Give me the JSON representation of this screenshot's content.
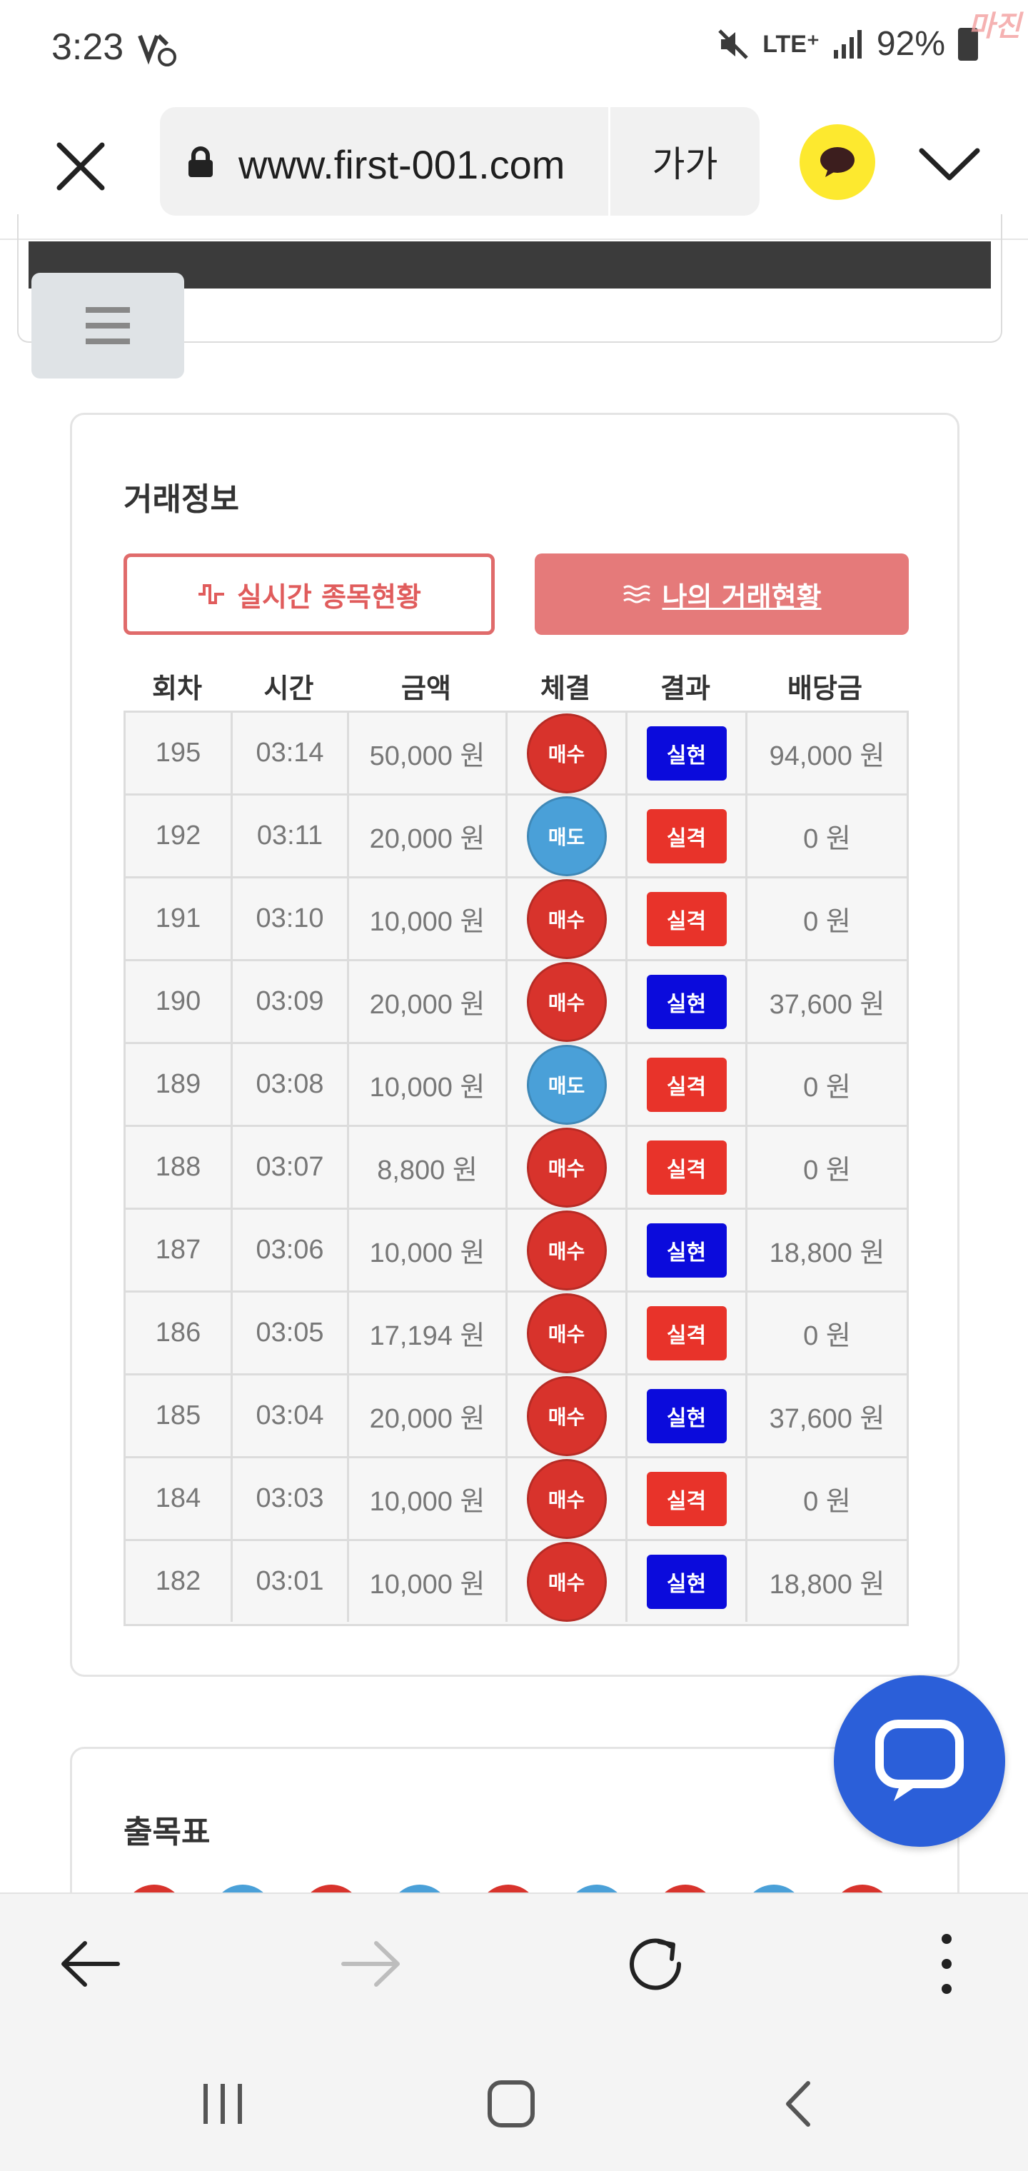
{
  "status": {
    "time": "3:23",
    "network": "LTE⁺",
    "battery": "92%",
    "watermark": "마진"
  },
  "browser": {
    "url": "www.first-001.com",
    "text_size_label": "가가"
  },
  "trade_card": {
    "title": "거래정보",
    "realtime_button": "실시간 종목현황",
    "my_trade_button": "나의 거래현황",
    "headers": [
      "회차",
      "시간",
      "금액",
      "체결",
      "결과",
      "배당금"
    ],
    "rows": [
      {
        "round": "195",
        "time": "03:14",
        "amount": "50,000 원",
        "trade": "매수",
        "result": "실현",
        "payout": "94,000 원"
      },
      {
        "round": "192",
        "time": "03:11",
        "amount": "20,000 원",
        "trade": "매도",
        "result": "실격",
        "payout": "0 원"
      },
      {
        "round": "191",
        "time": "03:10",
        "amount": "10,000 원",
        "trade": "매수",
        "result": "실격",
        "payout": "0 원"
      },
      {
        "round": "190",
        "time": "03:09",
        "amount": "20,000 원",
        "trade": "매수",
        "result": "실현",
        "payout": "37,600 원"
      },
      {
        "round": "189",
        "time": "03:08",
        "amount": "10,000 원",
        "trade": "매도",
        "result": "실격",
        "payout": "0 원"
      },
      {
        "round": "188",
        "time": "03:07",
        "amount": "8,800 원",
        "trade": "매수",
        "result": "실격",
        "payout": "0 원"
      },
      {
        "round": "187",
        "time": "03:06",
        "amount": "10,000 원",
        "trade": "매수",
        "result": "실현",
        "payout": "18,800 원"
      },
      {
        "round": "186",
        "time": "03:05",
        "amount": "17,194 원",
        "trade": "매수",
        "result": "실격",
        "payout": "0 원"
      },
      {
        "round": "185",
        "time": "03:04",
        "amount": "20,000 원",
        "trade": "매수",
        "result": "실현",
        "payout": "37,600 원"
      },
      {
        "round": "184",
        "time": "03:03",
        "amount": "10,000 원",
        "trade": "매수",
        "result": "실격",
        "payout": "0 원"
      },
      {
        "round": "182",
        "time": "03:01",
        "amount": "10,000 원",
        "trade": "매수",
        "result": "실현",
        "payout": "18,800 원"
      }
    ]
  },
  "schedule_card": {
    "title": "출목표",
    "dot_colors": [
      "#d8332c",
      "#4aa0d8",
      "#d8332c",
      "#4aa0d8",
      "#d8332c",
      "#4aa0d8",
      "#d8332c",
      "#4aa0d8",
      "#d8332c"
    ]
  },
  "colors": {
    "buy": "#d8332c",
    "sell": "#4aa0d8",
    "realized": "#0b0bdc",
    "disqualified": "#e8332a",
    "accent": "#e57a7a",
    "chat_fab": "#2b5fd9",
    "kakao": "#fde92f"
  }
}
